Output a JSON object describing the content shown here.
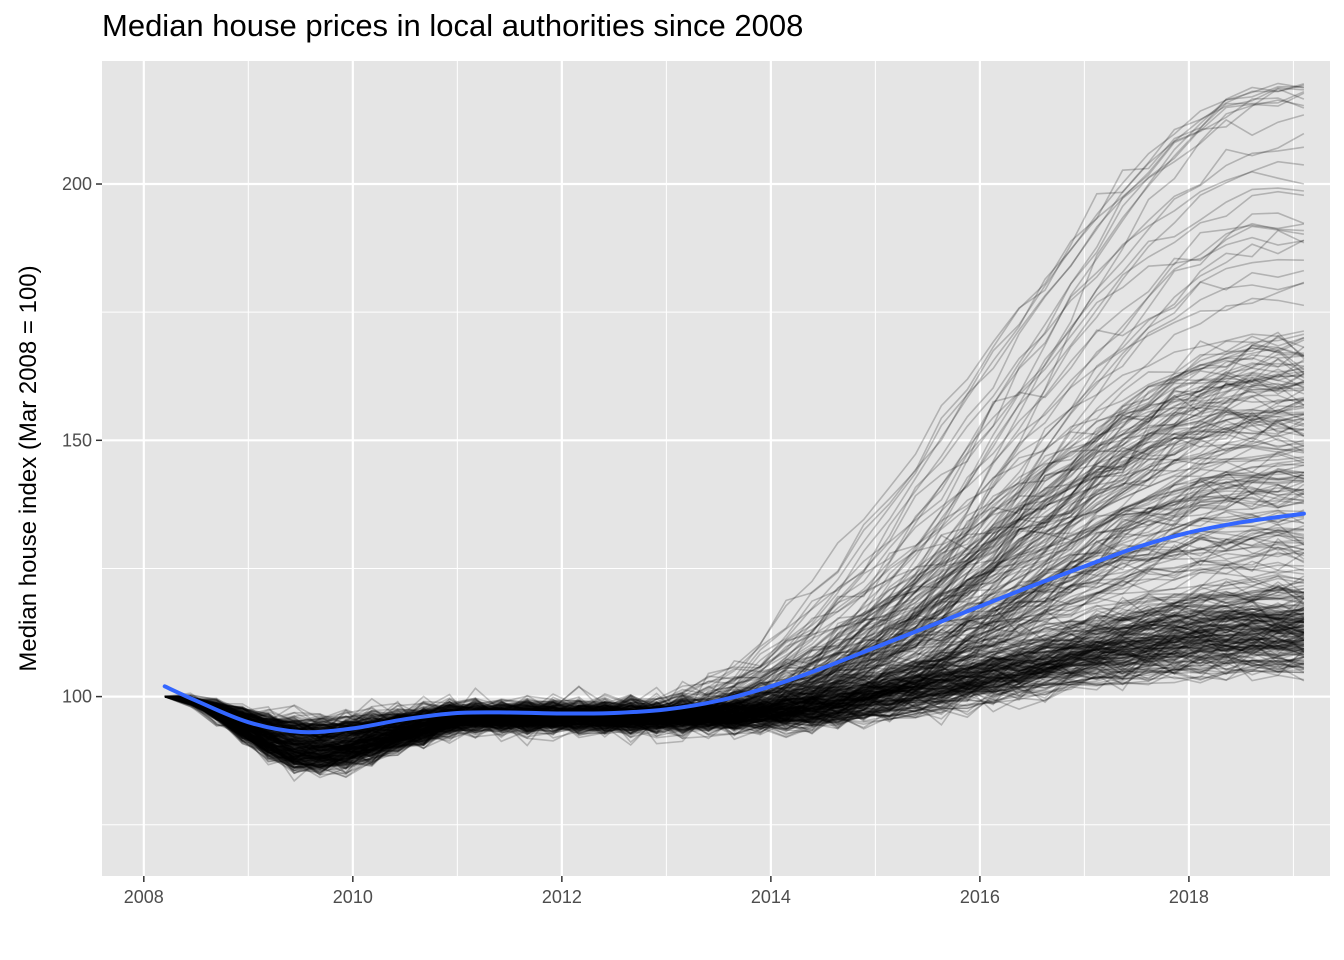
{
  "chart_data": {
    "type": "line",
    "title": "Median house prices in local authorities since 2008",
    "xlabel": "",
    "ylabel": "Median house index (Mar 2008 = 100)",
    "xlim": [
      2007.6,
      2019.35
    ],
    "ylim": [
      65,
      224
    ],
    "x_ticks": [
      2008,
      2010,
      2012,
      2014,
      2016,
      2018
    ],
    "y_ticks": [
      100,
      150,
      200
    ],
    "grid": true,
    "background": "#e5e5e5",
    "grid_color": "#ffffff",
    "area_lines": {
      "count": 380,
      "color": "#000000",
      "opacity": 0.22,
      "start_date": "2008-03",
      "end_date": "2019-03",
      "step": "quarterly",
      "start_value": 100,
      "final_value_range": [
        93,
        220
      ],
      "min_value": 72
    },
    "trend_series": {
      "name": "",
      "color": "#3366ff",
      "x": [
        2008.2,
        2008.5,
        2009.0,
        2009.5,
        2010.0,
        2010.5,
        2011.0,
        2011.5,
        2012.0,
        2012.5,
        2013.0,
        2013.5,
        2014.0,
        2014.5,
        2015.0,
        2015.5,
        2016.0,
        2016.5,
        2017.0,
        2017.5,
        2018.0,
        2018.5,
        2019.1
      ],
      "y": [
        102,
        99.2,
        95,
        93.1,
        93.8,
        95.6,
        96.8,
        96.9,
        96.7,
        96.8,
        97.5,
        99.2,
        102,
        105.6,
        109.6,
        113.6,
        117.6,
        121.6,
        125.4,
        129.1,
        132,
        134,
        135.7
      ]
    }
  }
}
